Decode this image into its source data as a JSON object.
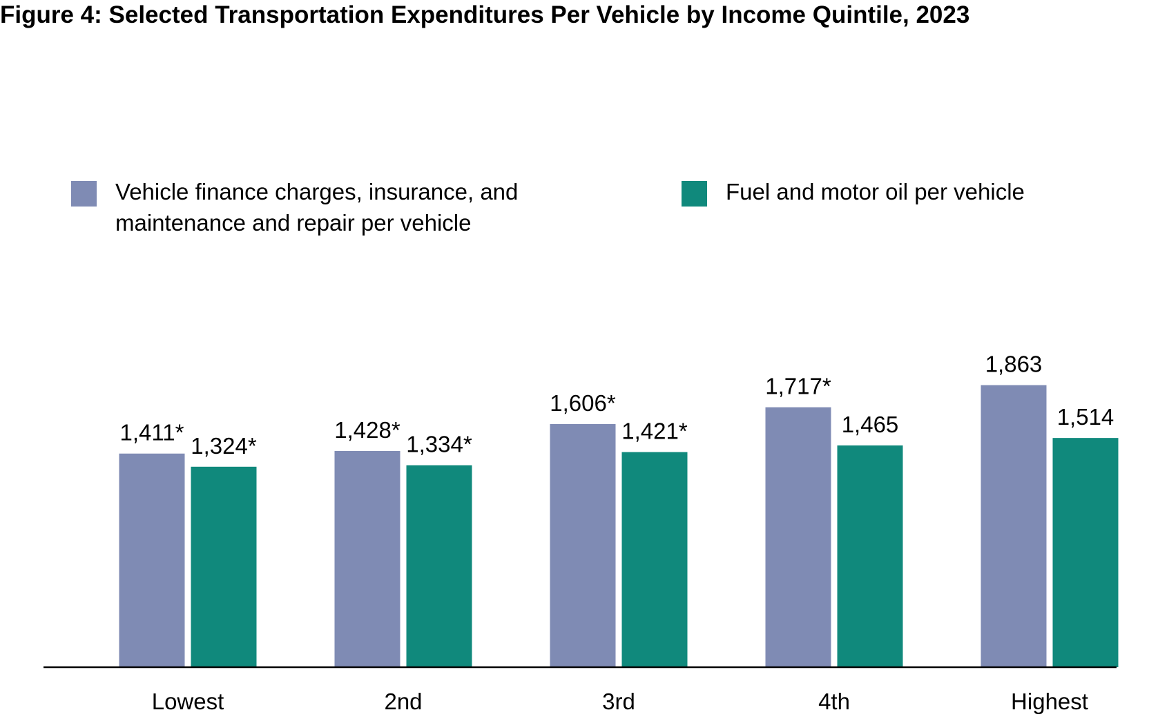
{
  "chart_data": {
    "type": "bar",
    "title": "Figure 4: Selected Transportation Expenditures Per Vehicle by Income Quintile, 2023",
    "categories": [
      "Lowest",
      "2nd",
      "3rd",
      "4th",
      "Highest"
    ],
    "series": [
      {
        "name": "Vehicle finance charges, insurance, and maintenance and repair per vehicle",
        "color": "#7f8bb4",
        "values": [
          1411,
          1428,
          1606,
          1717,
          1863
        ],
        "labels": [
          "1,411*",
          "1,428*",
          "1,606*",
          "1,717*",
          "1,863"
        ]
      },
      {
        "name": "Fuel and motor oil per vehicle",
        "color": "#10897c",
        "values": [
          1324,
          1334,
          1421,
          1465,
          1514
        ],
        "labels": [
          "1,324*",
          "1,334*",
          "1,421*",
          "1,465",
          "1,514"
        ]
      }
    ],
    "ylim": [
      0,
      2000
    ],
    "grid": false,
    "legend_position": "top"
  }
}
